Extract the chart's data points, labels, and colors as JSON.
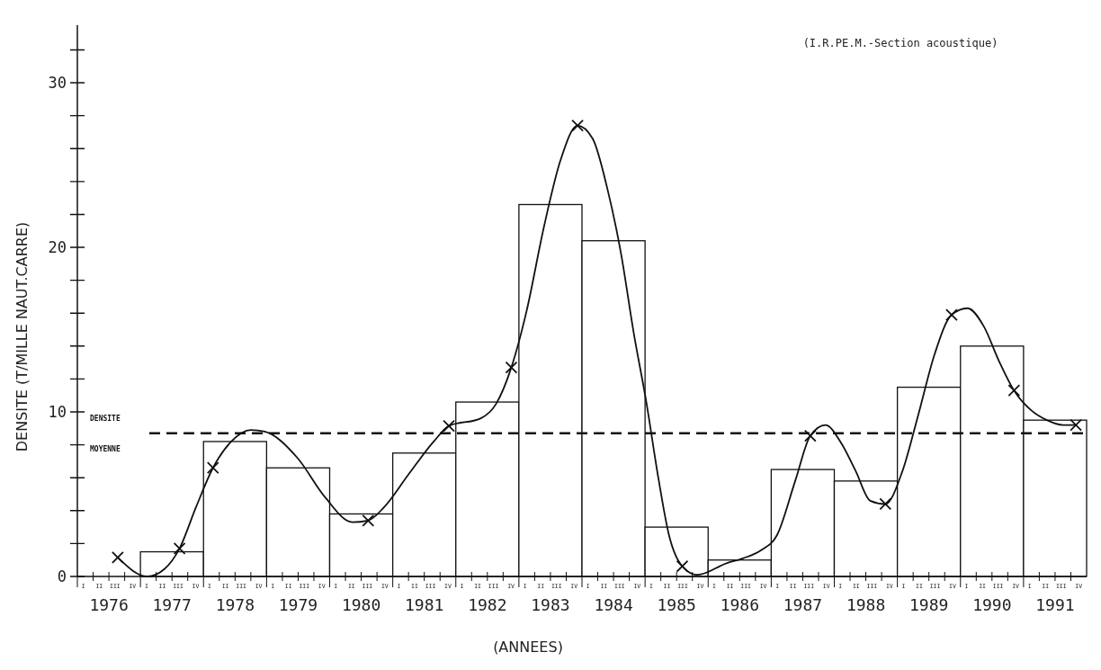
{
  "chart_data": {
    "type": "bar",
    "annotations": [
      "(I.R.PE.M.-Section acoustique)",
      "I II III IV",
      "I II III IV",
      "I II III IV",
      "I II III IV",
      "I II III IV",
      "I II III IV",
      "I II III IV",
      "I II III IV",
      "I II III IV",
      "I II III IV",
      "I II III IV",
      "I II III IV",
      "I II III IV",
      "I II III IV",
      "I II III IV",
      "I II III IV"
    ],
    "xlabel": "(ANNEES)",
    "ylabel": "DENSITE (T/MILLE NAUT.CARRE)",
    "xlim": [
      1975.5,
      1991.5
    ],
    "ylim": [
      0,
      33.5
    ],
    "yticks": [
      0,
      {
        "value": 2,
        "label": null
      },
      {
        "value": 4,
        "label": null
      },
      {
        "value": 6,
        "label": null
      },
      {
        "value": 8,
        "label": null
      },
      10,
      {
        "value": 12,
        "label": null
      },
      {
        "value": 14,
        "label": null
      },
      {
        "value": 16,
        "label": null
      },
      {
        "value": 18,
        "label": null
      },
      20,
      {
        "value": 22,
        "label": null
      },
      {
        "value": 24,
        "label": null
      },
      {
        "value": 26,
        "label": null
      },
      {
        "value": 28,
        "label": null
      },
      30,
      {
        "value": 32,
        "label": null
      }
    ],
    "xticks": [
      1976,
      1977,
      1978,
      1979,
      1980,
      1981,
      1982,
      1983,
      1984,
      1985,
      1986,
      1987,
      1988,
      1989,
      1990,
      1991
    ],
    "series": [
      {
        "color": "#ffffff",
        "x": [
          1977,
          1978,
          1979,
          1980,
          1981,
          1982,
          1983,
          1984,
          1985,
          1986,
          1987,
          1988,
          1989,
          1990,
          1991
        ],
        "values": [
          1.5,
          8.2,
          6.6,
          3.8,
          7.5,
          10.6,
          22.6,
          20.4,
          3.0,
          1.0,
          6.5,
          5.8,
          11.5,
          14.0,
          9.5
        ]
      },
      {
        "type": "line",
        "color": "#111111",
        "marker": "none",
        "line_style": "solid",
        "x": [
          1976.14,
          1976.61,
          1976.88,
          1977.12,
          1977.38,
          1977.65,
          1977.94,
          1978.25,
          1978.47,
          1978.99,
          1979.43,
          1979.86,
          1980.11,
          1980.36,
          1980.75,
          1981.15,
          1981.39,
          1981.89,
          1982.14,
          1982.38,
          1982.62,
          1982.9,
          1983.16,
          1983.43,
          1983.67,
          1983.9,
          1984.12,
          1984.32,
          1984.52,
          1984.71,
          1984.88,
          1985.09,
          1985.33,
          1985.79,
          1986.05,
          1986.34,
          1986.59,
          1986.88,
          1987.12,
          1987.36,
          1987.61,
          1987.84,
          1988.07,
          1988.31,
          1988.58,
          1988.83,
          1989.09,
          1989.36,
          1989.61,
          1989.87,
          1990.11,
          1990.35,
          1990.62,
          1990.87,
          1991.13,
          1991.33
        ],
        "values": [
          1.15,
          0,
          0.45,
          1.7,
          4.2,
          6.6,
          8.2,
          8.9,
          8.8,
          7.2,
          4.8,
          3.3,
          3.4,
          4.2,
          6.2,
          8.2,
          9.15,
          9.6,
          10.5,
          12.7,
          16.1,
          21.3,
          25.3,
          27.4,
          26.6,
          23.6,
          19.6,
          14.8,
          10.6,
          6.0,
          2.5,
          0.62,
          0.1,
          0.8,
          1.1,
          1.6,
          2.5,
          5.8,
          8.55,
          9.2,
          8.1,
          6.4,
          4.6,
          4.4,
          6.4,
          9.8,
          13.5,
          15.9,
          16.3,
          15.2,
          13.1,
          11.3,
          10.1,
          9.5,
          9.2,
          9.2
        ]
      },
      {
        "type": "scatter",
        "color": "#111111",
        "marker": "cross",
        "x": [
          1976.14,
          1977.12,
          1977.65,
          1980.11,
          1981.39,
          1982.38,
          1983.43,
          1985.09,
          1987.12,
          1988.31,
          1989.36,
          1990.35,
          1991.33
        ],
        "values": [
          1.15,
          1.7,
          6.6,
          3.4,
          9.15,
          12.7,
          27.4,
          0.62,
          8.55,
          4.4,
          15.9,
          11.3,
          9.2
        ]
      }
    ],
    "ref_lines": [
      {
        "axis": "y",
        "value": 8.7,
        "label": "DENSITE MOYENNE",
        "line_style": "dashed",
        "color": "#111111"
      }
    ],
    "grid": false
  }
}
